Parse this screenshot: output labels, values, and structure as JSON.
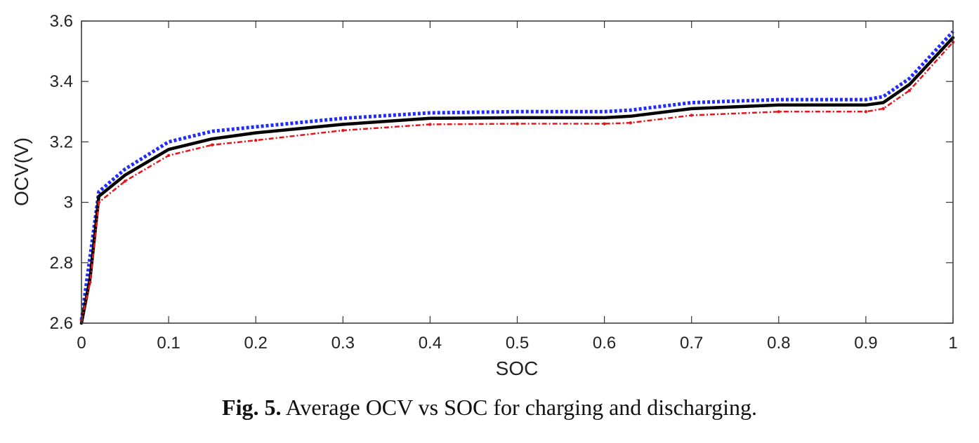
{
  "caption": {
    "label": "Fig. 5.",
    "text": "Average OCV vs SOC for charging and discharging."
  },
  "chart_data": {
    "type": "line",
    "xlabel": "SOC",
    "ylabel": "OCV(V)",
    "xlim": [
      0,
      1
    ],
    "ylim": [
      2.6,
      3.6
    ],
    "xticks": [
      "0",
      "0.1",
      "0.2",
      "0.3",
      "0.4",
      "0.5",
      "0.6",
      "0.7",
      "0.8",
      "0.9",
      "1"
    ],
    "yticks": [
      "2.6",
      "2.8",
      "3",
      "3.2",
      "3.4",
      "3.6"
    ],
    "grid": false,
    "legend": "none",
    "series": [
      {
        "style": "dotted",
        "color": "#1f2bff",
        "x": [
          0,
          0.02,
          0.05,
          0.1,
          0.15,
          0.2,
          0.3,
          0.4,
          0.5,
          0.6,
          0.63,
          0.7,
          0.8,
          0.9,
          0.92,
          0.95,
          1.0
        ],
        "y": [
          2.61,
          3.035,
          3.11,
          3.2,
          3.235,
          3.25,
          3.278,
          3.296,
          3.3,
          3.3,
          3.305,
          3.33,
          3.34,
          3.34,
          3.35,
          3.41,
          3.565
        ]
      },
      {
        "style": "solid",
        "color": "#000000",
        "x": [
          0,
          0.01,
          0.02,
          0.05,
          0.1,
          0.15,
          0.2,
          0.3,
          0.4,
          0.5,
          0.6,
          0.63,
          0.7,
          0.8,
          0.9,
          0.92,
          0.95,
          1.0
        ],
        "y": [
          2.6,
          2.75,
          3.02,
          3.09,
          3.175,
          3.21,
          3.23,
          3.258,
          3.278,
          3.28,
          3.28,
          3.285,
          3.31,
          3.322,
          3.322,
          3.33,
          3.39,
          3.545
        ]
      },
      {
        "style": "dash-dot",
        "color": "#e8141b",
        "x": [
          0,
          0.01,
          0.02,
          0.05,
          0.1,
          0.15,
          0.2,
          0.3,
          0.4,
          0.5,
          0.6,
          0.63,
          0.7,
          0.8,
          0.9,
          0.92,
          0.95,
          1.0
        ],
        "y": [
          2.61,
          2.735,
          3.0,
          3.07,
          3.155,
          3.19,
          3.205,
          3.238,
          3.258,
          3.26,
          3.26,
          3.263,
          3.288,
          3.3,
          3.3,
          3.31,
          3.37,
          3.53
        ]
      }
    ]
  }
}
